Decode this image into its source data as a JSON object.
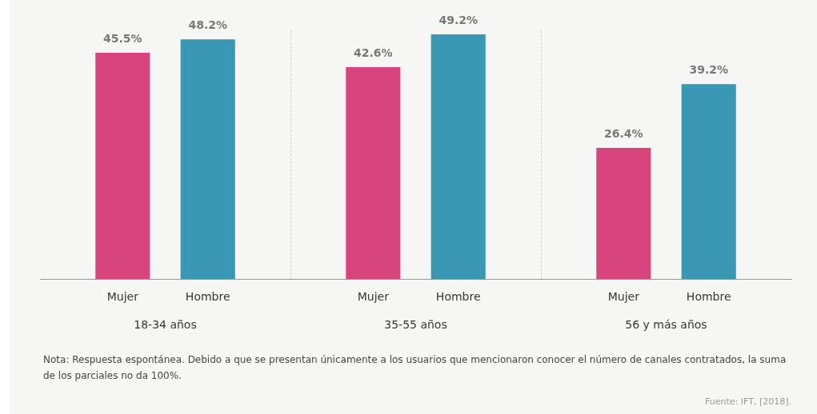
{
  "chart_data": {
    "type": "bar",
    "categories": [
      "18-34 años",
      "35-55 años",
      "56 y más años"
    ],
    "series": [
      {
        "name": "Mujer",
        "color": "#d8457e",
        "values": [
          45.5,
          42.6,
          26.4
        ],
        "value_labels": [
          "45.5%",
          "42.6%",
          "26.4%"
        ]
      },
      {
        "name": "Hombre",
        "color": "#3a98b4",
        "values": [
          48.2,
          49.2,
          39.2
        ],
        "value_labels": [
          "48.2%",
          "49.2%",
          "39.2%"
        ]
      }
    ],
    "legend": false,
    "grid": false,
    "annotations": [
      "Nota: Respuesta espontánea. Debido a que se presentan únicamente a los usuarios que mencionaron conocer el número de canales contratados, la suma de los parciales no da 100%.",
      "Fuente: IFT, [2018]."
    ]
  }
}
